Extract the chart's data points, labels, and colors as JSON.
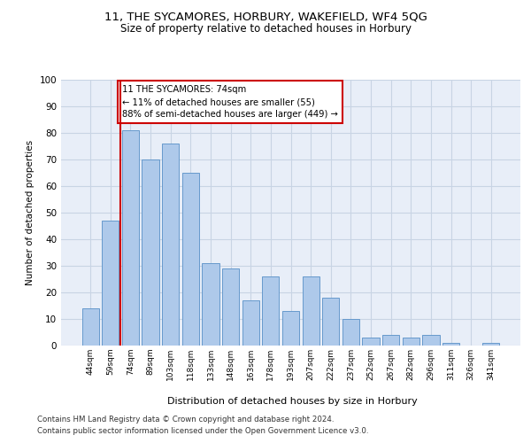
{
  "title1": "11, THE SYCAMORES, HORBURY, WAKEFIELD, WF4 5QG",
  "title2": "Size of property relative to detached houses in Horbury",
  "xlabel": "Distribution of detached houses by size in Horbury",
  "ylabel": "Number of detached properties",
  "categories": [
    "44sqm",
    "59sqm",
    "74sqm",
    "89sqm",
    "103sqm",
    "118sqm",
    "133sqm",
    "148sqm",
    "163sqm",
    "178sqm",
    "193sqm",
    "207sqm",
    "222sqm",
    "237sqm",
    "252sqm",
    "267sqm",
    "282sqm",
    "296sqm",
    "311sqm",
    "326sqm",
    "341sqm"
  ],
  "values": [
    14,
    47,
    81,
    70,
    76,
    65,
    31,
    29,
    17,
    26,
    13,
    26,
    18,
    10,
    3,
    4,
    3,
    4,
    1,
    0,
    1
  ],
  "bar_color": "#aec9ea",
  "bar_edge_color": "#6699cc",
  "vline_index": 2,
  "vline_color": "#cc0000",
  "annotation_line1": "11 THE SYCAMORES: 74sqm",
  "annotation_line2": "← 11% of detached houses are smaller (55)",
  "annotation_line3": "88% of semi-detached houses are larger (449) →",
  "annotation_box_edgecolor": "#cc0000",
  "ylim": [
    0,
    100
  ],
  "yticks": [
    0,
    10,
    20,
    30,
    40,
    50,
    60,
    70,
    80,
    90,
    100
  ],
  "grid_color": "#c8d4e4",
  "bg_color": "#e8eef8",
  "footer1": "Contains HM Land Registry data © Crown copyright and database right 2024.",
  "footer2": "Contains public sector information licensed under the Open Government Licence v3.0."
}
